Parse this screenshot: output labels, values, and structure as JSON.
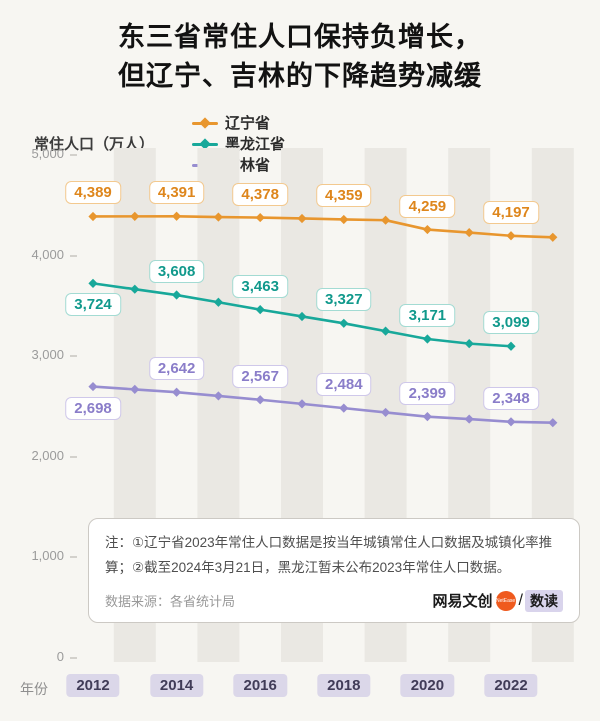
{
  "title": {
    "line1": "东三省常住人口保持负增长，",
    "line2": "但辽宁、吉林的下降趋势减缓"
  },
  "chart_data": {
    "type": "line",
    "title": "东三省常住人口保持负增长，但辽宁、吉林的下降趋势减缓",
    "ylabel": "常住人口（万人）",
    "xlabel": "年份",
    "ylim": [
      0,
      5000
    ],
    "y_tick_values": [
      0,
      1000,
      2000,
      3000,
      4000,
      5000
    ],
    "y_tick_labels": [
      "0",
      "1,000",
      "2,000",
      "3,000",
      "4,000",
      "5,000"
    ],
    "x": [
      2012,
      2013,
      2014,
      2015,
      2016,
      2017,
      2018,
      2019,
      2020,
      2021,
      2022,
      2023
    ],
    "x_tick_years": [
      2012,
      2014,
      2016,
      2018,
      2020,
      2022
    ],
    "x_tick_labels": [
      "2012",
      "2014",
      "2016",
      "2018",
      "2020",
      "2022"
    ],
    "stripe_years": [
      2013,
      2015,
      2017,
      2019,
      2021,
      2023
    ],
    "legend_position": "top",
    "grid": false,
    "series": [
      {
        "id": "liaoning",
        "name": "辽宁省",
        "color": "#E8962E",
        "label_color": "#DE861C",
        "label_border": "#F3C98F",
        "values": [
          4389,
          4390,
          4391,
          4383,
          4378,
          4369,
          4359,
          4352,
          4259,
          4229,
          4197,
          4182
        ],
        "point_labels": [
          {
            "x": 2012,
            "text": "4,389",
            "pos": "above"
          },
          {
            "x": 2014,
            "text": "4,391",
            "pos": "above"
          },
          {
            "x": 2016,
            "text": "4,378",
            "pos": "above"
          },
          {
            "x": 2018,
            "text": "4,359",
            "pos": "above"
          },
          {
            "x": 2020,
            "text": "4,259",
            "pos": "above"
          },
          {
            "x": 2022,
            "text": "4,197",
            "pos": "above"
          }
        ]
      },
      {
        "id": "heilongjiang",
        "name": "黑龙江省",
        "color": "#18A89A",
        "label_color": "#11998C",
        "label_border": "#A3DBD3",
        "values": [
          3724,
          3666,
          3608,
          3536,
          3463,
          3395,
          3327,
          3249,
          3171,
          3125,
          3099,
          null
        ],
        "point_labels": [
          {
            "x": 2012,
            "text": "3,724",
            "pos": "below"
          },
          {
            "x": 2014,
            "text": "3,608",
            "pos": "above"
          },
          {
            "x": 2016,
            "text": "3,463",
            "pos": "above"
          },
          {
            "x": 2018,
            "text": "3,327",
            "pos": "above"
          },
          {
            "x": 2020,
            "text": "3,171",
            "pos": "above"
          },
          {
            "x": 2022,
            "text": "3,099",
            "pos": "above"
          }
        ]
      },
      {
        "id": "jilin",
        "name": "吉林省",
        "color": "#978DD0",
        "label_color": "#8A7DC9",
        "label_border": "#CFC8EA",
        "values": [
          2698,
          2670,
          2642,
          2605,
          2567,
          2526,
          2484,
          2441,
          2399,
          2375,
          2348,
          2339
        ],
        "point_labels": [
          {
            "x": 2012,
            "text": "2,698",
            "pos": "below"
          },
          {
            "x": 2014,
            "text": "2,642",
            "pos": "above"
          },
          {
            "x": 2016,
            "text": "2,567",
            "pos": "above"
          },
          {
            "x": 2018,
            "text": "2,484",
            "pos": "above"
          },
          {
            "x": 2020,
            "text": "2,399",
            "pos": "above"
          },
          {
            "x": 2022,
            "text": "2,348",
            "pos": "above"
          }
        ]
      }
    ]
  },
  "note": {
    "text": "注：①辽宁省2023年常住人口数据是按当年城镇常住人口数据及城镇化率推算；②截至2024年3月21日，黑龙江暂未公布2023年常住人口数据。",
    "source": "数据来源：各省统计局"
  },
  "logo": {
    "brand": "网易文创",
    "badge": "NetEase",
    "slash": "/",
    "product": "数读"
  },
  "colors": {
    "background": "#f7f6f2",
    "stripe": "#eae8e3",
    "year_chip_bg": "#dbd7e9",
    "year_chip_text": "#413c58",
    "liaoning": "#E8962E",
    "heilongjiang": "#18A89A",
    "jilin": "#978DD0"
  }
}
